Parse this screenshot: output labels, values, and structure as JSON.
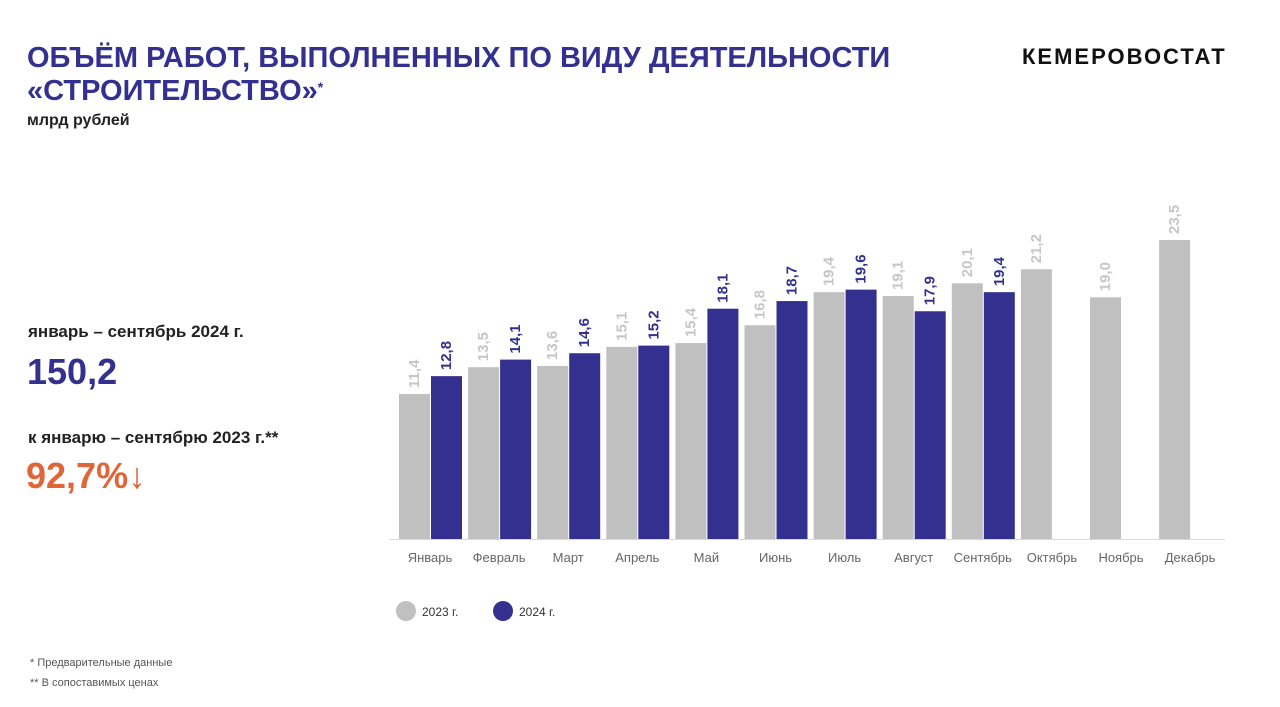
{
  "header": {
    "title": [
      "ОБЪЁМ РАБОТ, ВЫПОЛНЕННЫХ ПО ВИДУ ДЕЯТЕЛЬНОСТИ",
      "«СТРОИТЕЛЬСТВО»"
    ],
    "title_note": "*",
    "subtitle": "млрд рублей",
    "brand": "КЕМЕРОВОСТАТ"
  },
  "summary": {
    "period": "январь – сентябрь 2024 г.",
    "value": "150,2",
    "comparison": "к январю – сентябрю 2023 г.**",
    "change": "92,7%",
    "change_arrow": "↓"
  },
  "footnotes": [
    "* Предварительные данные",
    "** В сопоставимых ценах"
  ],
  "chart_data": {
    "type": "bar",
    "categories": [
      "Январь",
      "Февраль",
      "Март",
      "Апрель",
      "Май",
      "Июнь",
      "Июль",
      "Август",
      "Сентябрь",
      "Октябрь",
      "Ноябрь",
      "Декабрь"
    ],
    "series": [
      {
        "name": "2023 г.",
        "color": "#c0c0c0",
        "values": [
          11.4,
          13.5,
          13.6,
          15.1,
          15.4,
          16.8,
          19.4,
          19.1,
          20.1,
          21.2,
          19.0,
          23.5
        ],
        "value_labels": [
          "11,4",
          "13,5",
          "13,6",
          "15,1",
          "15,4",
          "16,8",
          "19,4",
          "19,1",
          "20,1",
          "21,2",
          "19,0",
          "23,5"
        ]
      },
      {
        "name": "2024 г.",
        "color": "#33308f",
        "values": [
          12.8,
          14.1,
          14.6,
          15.2,
          18.1,
          18.7,
          19.6,
          17.9,
          19.4,
          null,
          null,
          null
        ],
        "value_labels": [
          "12,8",
          "14,1",
          "14,6",
          "15,2",
          "18,1",
          "18,7",
          "19,6",
          "17,9",
          "19,4",
          null,
          null,
          null
        ]
      }
    ],
    "legend": "bottom-left"
  }
}
